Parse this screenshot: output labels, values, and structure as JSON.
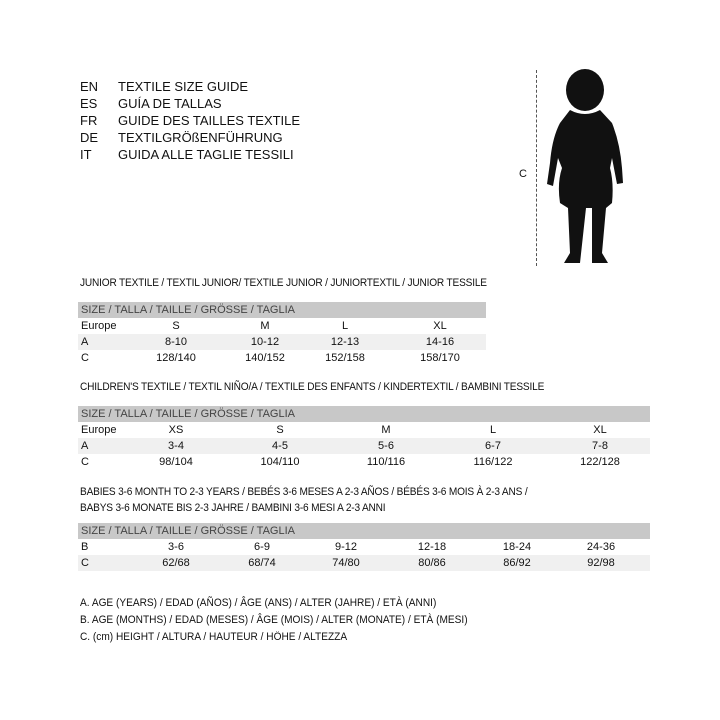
{
  "languages": [
    {
      "code": "EN",
      "text": "TEXTILE SIZE GUIDE"
    },
    {
      "code": "ES",
      "text": "GUÍA DE TALLAS"
    },
    {
      "code": "FR",
      "text": "GUIDE DES TAILLES TEXTILE"
    },
    {
      "code": "DE",
      "text": "TEXTILGRÖßENFÜHRUNG"
    },
    {
      "code": "IT",
      "text": "GUIDA ALLE TAGLIE TESSILI"
    }
  ],
  "figure": {
    "measure_label": "C",
    "icon": "child-silhouette-icon"
  },
  "size_header": "SIZE / TALLA / TAILLE / GRÖSSE / TAGLIA",
  "junior": {
    "title": "JUNIOR TEXTILE / TEXTIL JUNIOR/ TEXTILE JUNIOR / JUNIORTEXTIL / JUNIOR TESSILE",
    "rows": [
      {
        "label": "Europe",
        "values": [
          "S",
          "M",
          "L",
          "XL"
        ]
      },
      {
        "label": "A",
        "values": [
          "8-10",
          "10-12",
          "12-13",
          "14-16"
        ]
      },
      {
        "label": "C",
        "values": [
          "128/140",
          "140/152",
          "152/158",
          "158/170"
        ]
      }
    ]
  },
  "children": {
    "title": "CHILDREN'S TEXTILE / TEXTIL NIÑO/A / TEXTILE DES ENFANTS / KINDERTEXTIL / BAMBINI TESSILE",
    "rows": [
      {
        "label": "Europe",
        "values": [
          "XS",
          "S",
          "M",
          "L",
          "XL"
        ]
      },
      {
        "label": "A",
        "values": [
          "3-4",
          "4-5",
          "5-6",
          "6-7",
          "7-8"
        ]
      },
      {
        "label": "C",
        "values": [
          "98/104",
          "104/110",
          "110/116",
          "116/122",
          "122/128"
        ]
      }
    ]
  },
  "babies": {
    "title_line1": "BABIES 3-6 MONTH TO 2-3 YEARS / BEBÉS 3-6 MESES A 2-3 AÑOS / BÉBÉS 3-6 MOIS À 2-3 ANS /",
    "title_line2": "BABYS 3-6 MONATE BIS 2-3 JAHRE / BAMBINI 3-6 MESI A 2-3 ANNI",
    "rows": [
      {
        "label": "B",
        "values": [
          "3-6",
          "6-9",
          "9-12",
          "12-18",
          "18-24",
          "24-36"
        ]
      },
      {
        "label": "C",
        "values": [
          "62/68",
          "68/74",
          "74/80",
          "80/86",
          "86/92",
          "92/98"
        ]
      }
    ]
  },
  "legend": [
    "A. AGE (YEARS) / EDAD (AÑOS) / ÂGE (ANS) / ALTER (JAHRE) / ETÀ (ANNI)",
    "B. AGE (MONTHS) / EDAD (MESES) / ÂGE (MOIS) / ALTER (MONATE) / ETÀ (MESI)",
    "C. (cm) HEIGHT / ALTURA / HAUTEUR / HÖHE / ALTEZZA"
  ]
}
